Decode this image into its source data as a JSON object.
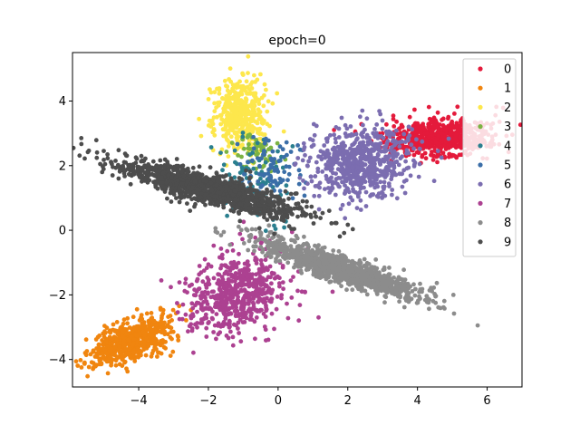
{
  "chart_data": {
    "type": "scatter",
    "title": "epoch=0",
    "xlabel": "",
    "ylabel": "",
    "xlim": [
      -5.9,
      7.0
    ],
    "ylim": [
      -4.85,
      5.5
    ],
    "xticks": [
      -4,
      -2,
      0,
      2,
      4,
      6
    ],
    "yticks": [
      -4,
      -2,
      0,
      2,
      4
    ],
    "grid": false,
    "legend": "upper right",
    "series": [
      {
        "name": "0",
        "color": "#e41a3b",
        "clusters": [
          {
            "cx": 4.6,
            "cy": 2.85,
            "sx": 0.75,
            "sy": 0.3,
            "rho": 0.15,
            "n": 650
          }
        ]
      },
      {
        "name": "1",
        "color": "#f0850f",
        "clusters": [
          {
            "cx": -4.2,
            "cy": -3.4,
            "sx": 0.55,
            "sy": 0.38,
            "rho": 0.55,
            "n": 600
          }
        ]
      },
      {
        "name": "2",
        "color": "#fde74c",
        "clusters": [
          {
            "cx": -1.1,
            "cy": 3.6,
            "sx": 0.38,
            "sy": 0.6,
            "rho": 0.0,
            "n": 450
          }
        ]
      },
      {
        "name": "3",
        "color": "#7cb342",
        "clusters": [
          {
            "cx": -0.5,
            "cy": 2.5,
            "sx": 0.35,
            "sy": 0.3,
            "rho": 0.0,
            "n": 60
          }
        ]
      },
      {
        "name": "4",
        "color": "#2a7f8f",
        "clusters": [
          {
            "cx": -0.7,
            "cy": 1.5,
            "sx": 0.45,
            "sy": 0.6,
            "rho": 0.0,
            "n": 90
          }
        ]
      },
      {
        "name": "5",
        "color": "#3b6ea8",
        "clusters": [
          {
            "cx": -0.2,
            "cy": 1.9,
            "sx": 0.4,
            "sy": 0.5,
            "rho": 0.0,
            "n": 90
          }
        ]
      },
      {
        "name": "6",
        "color": "#7b6db0",
        "clusters": [
          {
            "cx": 2.4,
            "cy": 2.1,
            "sx": 0.75,
            "sy": 0.55,
            "rho": 0.1,
            "n": 650
          }
        ]
      },
      {
        "name": "7",
        "color": "#ac4191",
        "clusters": [
          {
            "cx": -1.2,
            "cy": -2.0,
            "sx": 0.7,
            "sy": 0.6,
            "rho": 0.2,
            "n": 600
          }
        ]
      },
      {
        "name": "8",
        "color": "#8c8c8c",
        "clusters": [
          {
            "cx": 1.8,
            "cy": -1.2,
            "sx": 1.15,
            "sy": 0.45,
            "rho": -0.88,
            "n": 1200
          }
        ]
      },
      {
        "name": "9",
        "color": "#4d4d4d",
        "clusters": [
          {
            "cx": -2.0,
            "cy": 1.3,
            "sx": 1.35,
            "sy": 0.45,
            "rho": -0.85,
            "n": 1200
          }
        ]
      }
    ]
  }
}
